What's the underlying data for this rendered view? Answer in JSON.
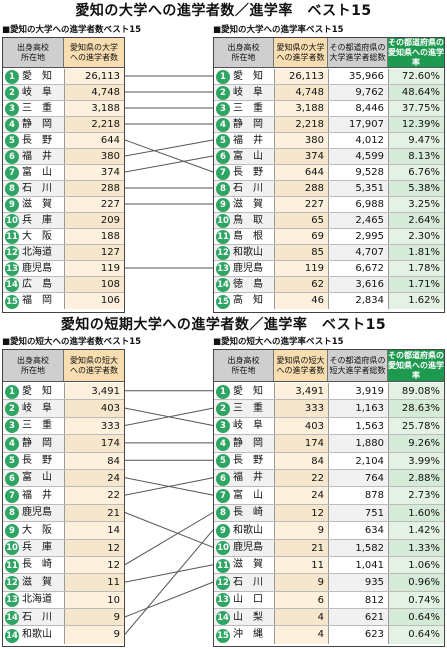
{
  "univ": {
    "title": "愛知の大学への進学者数／進学率　ベスト15",
    "left": {
      "subtitle": "■愛知の大学への進学者数ベスト15",
      "h1": "出身高校\n所在地",
      "h2": "愛知県の大学\nへの進学者数",
      "rows": [
        {
          "rank": "1",
          "pref": "愛　知",
          "v": "26,113"
        },
        {
          "rank": "2",
          "pref": "岐　阜",
          "v": "4,748"
        },
        {
          "rank": "3",
          "pref": "三　重",
          "v": "3,188"
        },
        {
          "rank": "4",
          "pref": "静　岡",
          "v": "2,218"
        },
        {
          "rank": "5",
          "pref": "長　野",
          "v": "644"
        },
        {
          "rank": "6",
          "pref": "福　井",
          "v": "380"
        },
        {
          "rank": "7",
          "pref": "富　山",
          "v": "374"
        },
        {
          "rank": "8",
          "pref": "石　川",
          "v": "288"
        },
        {
          "rank": "9",
          "pref": "滋　賀",
          "v": "227"
        },
        {
          "rank": "10",
          "pref": "兵　庫",
          "v": "209"
        },
        {
          "rank": "11",
          "pref": "大　阪",
          "v": "188"
        },
        {
          "rank": "12",
          "pref": "北海道",
          "v": "127"
        },
        {
          "rank": "13",
          "pref": "鹿児島",
          "v": "119"
        },
        {
          "rank": "14",
          "pref": "広　島",
          "v": "108"
        },
        {
          "rank": "15",
          "pref": "福　岡",
          "v": "106"
        }
      ]
    },
    "right": {
      "subtitle": "■愛知の大学への進学率ベスト15",
      "h1": "出身高校\n所在地",
      "h2": "愛知県の大学\nへの進学者数",
      "h3": "その都道府県の\n大学進学者総数",
      "h4": "その都道府県の\n愛知県への進学率",
      "rows": [
        {
          "rank": "1",
          "pref": "愛　知",
          "v": "26,113",
          "t": "35,966",
          "r": "72.60%"
        },
        {
          "rank": "2",
          "pref": "岐　阜",
          "v": "4,748",
          "t": "9,762",
          "r": "48.64%"
        },
        {
          "rank": "3",
          "pref": "三　重",
          "v": "3,188",
          "t": "8,446",
          "r": "37.75%"
        },
        {
          "rank": "4",
          "pref": "静　岡",
          "v": "2,218",
          "t": "17,907",
          "r": "12.39%"
        },
        {
          "rank": "5",
          "pref": "福　井",
          "v": "380",
          "t": "4,012",
          "r": "9.47%"
        },
        {
          "rank": "6",
          "pref": "富　山",
          "v": "374",
          "t": "4,599",
          "r": "8.13%"
        },
        {
          "rank": "7",
          "pref": "長　野",
          "v": "644",
          "t": "9,528",
          "r": "6.76%"
        },
        {
          "rank": "8",
          "pref": "石　川",
          "v": "288",
          "t": "5,351",
          "r": "5.38%"
        },
        {
          "rank": "9",
          "pref": "滋　賀",
          "v": "227",
          "t": "6,988",
          "r": "3.25%"
        },
        {
          "rank": "10",
          "pref": "鳥　取",
          "v": "65",
          "t": "2,465",
          "r": "2.64%"
        },
        {
          "rank": "11",
          "pref": "島　根",
          "v": "69",
          "t": "2,995",
          "r": "2.30%"
        },
        {
          "rank": "12",
          "pref": "和歌山",
          "v": "85",
          "t": "4,707",
          "r": "1.81%"
        },
        {
          "rank": "13",
          "pref": "鹿児島",
          "v": "119",
          "t": "6,672",
          "r": "1.78%"
        },
        {
          "rank": "14",
          "pref": "徳　島",
          "v": "62",
          "t": "3,616",
          "r": "1.71%"
        },
        {
          "rank": "15",
          "pref": "高　知",
          "v": "46",
          "t": "2,834",
          "r": "1.62%"
        }
      ]
    },
    "links": [
      [
        1,
        1
      ],
      [
        2,
        2
      ],
      [
        3,
        3
      ],
      [
        4,
        4
      ],
      [
        5,
        7
      ],
      [
        6,
        5
      ],
      [
        7,
        6
      ],
      [
        8,
        8
      ],
      [
        9,
        9
      ],
      [
        13,
        13
      ]
    ]
  },
  "junior": {
    "title": "愛知の短期大学への進学者数／進学率　ベスト15",
    "left": {
      "subtitle": "■愛知の短大への進学者数ベスト15",
      "h1": "出身高校\n所在地",
      "h2": "愛知県の短大\nへの進学者数",
      "rows": [
        {
          "rank": "1",
          "pref": "愛　知",
          "v": "3,491"
        },
        {
          "rank": "2",
          "pref": "岐　阜",
          "v": "403"
        },
        {
          "rank": "3",
          "pref": "三　重",
          "v": "333"
        },
        {
          "rank": "4",
          "pref": "静　岡",
          "v": "174"
        },
        {
          "rank": "5",
          "pref": "長　野",
          "v": "84"
        },
        {
          "rank": "6",
          "pref": "富　山",
          "v": "24"
        },
        {
          "rank": "7",
          "pref": "福　井",
          "v": "22"
        },
        {
          "rank": "8",
          "pref": "鹿児島",
          "v": "21"
        },
        {
          "rank": "9",
          "pref": "大　阪",
          "v": "14"
        },
        {
          "rank": "10",
          "pref": "兵　庫",
          "v": "12"
        },
        {
          "rank": "11",
          "pref": "長　崎",
          "v": "12"
        },
        {
          "rank": "12",
          "pref": "滋　賀",
          "v": "11"
        },
        {
          "rank": "13",
          "pref": "北海道",
          "v": "10"
        },
        {
          "rank": "14",
          "pref": "石　川",
          "v": "9"
        },
        {
          "rank": "14",
          "pref": "和歌山",
          "v": "9"
        }
      ]
    },
    "right": {
      "subtitle": "■愛知の短大への進学率ベスト15",
      "h1": "出身高校\n所在地",
      "h2": "愛知県の短大\nへの進学者数",
      "h3": "その都道府県の\n短大進学者総数",
      "h4": "その都道府県の\n愛知県への進学率",
      "rows": [
        {
          "rank": "1",
          "pref": "愛　知",
          "v": "3,491",
          "t": "3,919",
          "r": "89.08%"
        },
        {
          "rank": "2",
          "pref": "三　重",
          "v": "333",
          "t": "1,163",
          "r": "28.63%"
        },
        {
          "rank": "3",
          "pref": "岐　阜",
          "v": "403",
          "t": "1,563",
          "r": "25.78%"
        },
        {
          "rank": "4",
          "pref": "静　岡",
          "v": "174",
          "t": "1,880",
          "r": "9.26%"
        },
        {
          "rank": "5",
          "pref": "長　野",
          "v": "84",
          "t": "2,104",
          "r": "3.99%"
        },
        {
          "rank": "6",
          "pref": "福　井",
          "v": "22",
          "t": "764",
          "r": "2.88%"
        },
        {
          "rank": "7",
          "pref": "富　山",
          "v": "24",
          "t": "878",
          "r": "2.73%"
        },
        {
          "rank": "8",
          "pref": "長　崎",
          "v": "12",
          "t": "751",
          "r": "1.60%"
        },
        {
          "rank": "9",
          "pref": "和歌山",
          "v": "9",
          "t": "634",
          "r": "1.42%"
        },
        {
          "rank": "10",
          "pref": "鹿児島",
          "v": "21",
          "t": "1,582",
          "r": "1.33%"
        },
        {
          "rank": "11",
          "pref": "滋　賀",
          "v": "11",
          "t": "1,041",
          "r": "1.06%"
        },
        {
          "rank": "12",
          "pref": "石　川",
          "v": "9",
          "t": "935",
          "r": "0.96%"
        },
        {
          "rank": "13",
          "pref": "山　口",
          "v": "6",
          "t": "812",
          "r": "0.74%"
        },
        {
          "rank": "14",
          "pref": "山　梨",
          "v": "4",
          "t": "621",
          "r": "0.64%"
        },
        {
          "rank": "15",
          "pref": "沖　縄",
          "v": "4",
          "t": "623",
          "r": "0.64%"
        }
      ]
    },
    "links": [
      [
        1,
        1
      ],
      [
        2,
        3
      ],
      [
        3,
        2
      ],
      [
        4,
        4
      ],
      [
        5,
        5
      ],
      [
        6,
        7
      ],
      [
        7,
        6
      ],
      [
        8,
        10
      ],
      [
        11,
        8
      ],
      [
        12,
        11
      ],
      [
        14,
        12
      ],
      [
        15,
        9
      ]
    ]
  }
}
